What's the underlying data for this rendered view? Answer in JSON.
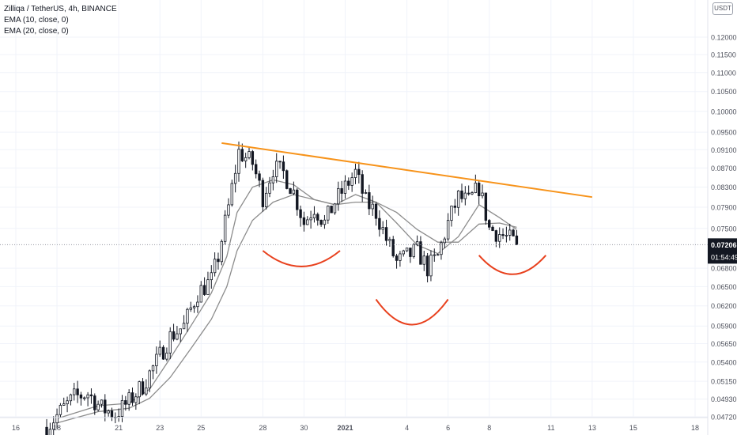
{
  "legend": {
    "title": "Zilliqa / TetherUS, 4h, BINANCE",
    "ema_fast": "EMA (10, close, 0)",
    "ema_slow": "EMA (20, close, 0)"
  },
  "currency_badge": "USDT",
  "price_badge": {
    "value": "0.07206",
    "countdown": "01:54:49"
  },
  "colors": {
    "candle": "#131722",
    "ema": "#8c8c8c",
    "trendline": "#f7931a",
    "pattern_arc": "#e8411e",
    "grid": "#f0f3fa",
    "axis_text": "#50535e",
    "badge_bg": "#131722"
  },
  "chart_data": {
    "type": "candlestick",
    "title": "Zilliqa / TetherUS, 4h, BINANCE",
    "y_scale": "log",
    "y_ticks": [
      "0.12000",
      "0.11500",
      "0.11000",
      "0.10500",
      "0.10000",
      "0.09500",
      "0.09100",
      "0.08700",
      "0.08300",
      "0.07900",
      "0.07500",
      "0.07206",
      "0.06800",
      "0.06500",
      "0.06200",
      "0.05900",
      "0.05650",
      "0.05400",
      "0.05150",
      "0.04930",
      "0.04720"
    ],
    "ylim": [
      0.0472,
      0.125
    ],
    "x_ticks": [
      {
        "label": "16",
        "x": "2020-12-16"
      },
      {
        "label": "18",
        "x": "2020-12-18"
      },
      {
        "label": "21",
        "x": "2020-12-21"
      },
      {
        "label": "23",
        "x": "2020-12-23"
      },
      {
        "label": "25",
        "x": "2020-12-25"
      },
      {
        "label": "28",
        "x": "2020-12-28"
      },
      {
        "label": "30",
        "x": "2020-12-30"
      },
      {
        "label": "2021",
        "x": "2021-01-01"
      },
      {
        "label": "4",
        "x": "2021-01-04"
      },
      {
        "label": "6",
        "x": "2021-01-06"
      },
      {
        "label": "8",
        "x": "2021-01-08"
      },
      {
        "label": "11",
        "x": "2021-01-11"
      },
      {
        "label": "13",
        "x": "2021-01-13"
      },
      {
        "label": "15",
        "x": "2021-01-15"
      },
      {
        "label": "18",
        "x": "2021-01-18"
      }
    ],
    "last_price": 0.07206,
    "ema_fast_name": "EMA (10, close, 0)",
    "ema_slow_name": "EMA (20, close, 0)",
    "price_path": [
      [
        "2020-12-17 12:00",
        0.046
      ],
      [
        "2020-12-18 04:00",
        0.0478
      ],
      [
        "2020-12-18 20:00",
        0.0495
      ],
      [
        "2020-12-19 12:00",
        0.05
      ],
      [
        "2020-12-20 04:00",
        0.0482
      ],
      [
        "2020-12-20 20:00",
        0.0475
      ],
      [
        "2020-12-21 12:00",
        0.049
      ],
      [
        "2020-12-22 04:00",
        0.051
      ],
      [
        "2020-12-22 20:00",
        0.054
      ],
      [
        "2020-12-23 12:00",
        0.0575
      ],
      [
        "2020-12-24 04:00",
        0.059
      ],
      [
        "2020-12-24 20:00",
        0.064
      ],
      [
        "2020-12-25 12:00",
        0.066
      ],
      [
        "2020-12-25 20:00",
        0.07
      ],
      [
        "2020-12-26 08:00",
        0.079
      ],
      [
        "2020-12-26 20:00",
        0.0905
      ],
      [
        "2020-12-27 12:00",
        0.088
      ],
      [
        "2020-12-28 00:00",
        0.081
      ],
      [
        "2020-12-28 12:00",
        0.087
      ],
      [
        "2020-12-29 00:00",
        0.086
      ],
      [
        "2020-12-29 12:00",
        0.082
      ],
      [
        "2020-12-30 00:00",
        0.076
      ],
      [
        "2020-12-30 12:00",
        0.079
      ],
      [
        "2020-12-31 00:00",
        0.076
      ],
      [
        "2020-12-31 12:00",
        0.08
      ],
      [
        "2021-01-01 00:00",
        0.083
      ],
      [
        "2021-01-01 12:00",
        0.086
      ],
      [
        "2021-01-02 00:00",
        0.08
      ],
      [
        "2021-01-02 12:00",
        0.078
      ],
      [
        "2021-01-03 00:00",
        0.073
      ],
      [
        "2021-01-03 12:00",
        0.069
      ],
      [
        "2021-01-04 00:00",
        0.07
      ],
      [
        "2021-01-04 12:00",
        0.071
      ],
      [
        "2021-01-05 00:00",
        0.068
      ],
      [
        "2021-01-05 12:00",
        0.07
      ],
      [
        "2021-01-06 00:00",
        0.076
      ],
      [
        "2021-01-06 12:00",
        0.081
      ],
      [
        "2021-01-07 00:00",
        0.08
      ],
      [
        "2021-01-07 12:00",
        0.083
      ],
      [
        "2021-01-08 00:00",
        0.075
      ],
      [
        "2021-01-08 12:00",
        0.074
      ],
      [
        "2021-01-09 00:00",
        0.073
      ],
      [
        "2021-01-09 08:00",
        0.07206
      ]
    ],
    "ema_fast": [
      [
        "2020-12-18 00:00",
        0.047
      ],
      [
        "2020-12-20 00:00",
        0.0485
      ],
      [
        "2020-12-21 12:00",
        0.0488
      ],
      [
        "2020-12-22 12:00",
        0.0505
      ],
      [
        "2020-12-23 12:00",
        0.0545
      ],
      [
        "2020-12-24 12:00",
        0.059
      ],
      [
        "2020-12-25 12:00",
        0.064
      ],
      [
        "2020-12-26 06:00",
        0.07
      ],
      [
        "2020-12-26 18:00",
        0.078
      ],
      [
        "2020-12-27 12:00",
        0.083
      ],
      [
        "2020-12-28 12:00",
        0.0845
      ],
      [
        "2020-12-29 12:00",
        0.0835
      ],
      [
        "2020-12-30 12:00",
        0.0805
      ],
      [
        "2020-12-31 12:00",
        0.0795
      ],
      [
        "2021-01-01 12:00",
        0.0815
      ],
      [
        "2021-01-02 12:00",
        0.08
      ],
      [
        "2021-01-03 12:00",
        0.076
      ],
      [
        "2021-01-04 12:00",
        0.072
      ],
      [
        "2021-01-05 12:00",
        0.0705
      ],
      [
        "2021-01-06 12:00",
        0.0735
      ],
      [
        "2021-01-07 12:00",
        0.0795
      ],
      [
        "2021-01-08 12:00",
        0.077
      ],
      [
        "2021-01-09 08:00",
        0.0748
      ]
    ],
    "ema_slow": [
      [
        "2020-12-18 00:00",
        0.0465
      ],
      [
        "2020-12-20 00:00",
        0.0478
      ],
      [
        "2020-12-21 12:00",
        0.0482
      ],
      [
        "2020-12-22 12:00",
        0.0494
      ],
      [
        "2020-12-23 12:00",
        0.052
      ],
      [
        "2020-12-24 12:00",
        0.0558
      ],
      [
        "2020-12-25 12:00",
        0.06
      ],
      [
        "2020-12-26 06:00",
        0.065
      ],
      [
        "2020-12-26 18:00",
        0.071
      ],
      [
        "2020-12-27 12:00",
        0.0765
      ],
      [
        "2020-12-28 12:00",
        0.08
      ],
      [
        "2020-12-29 12:00",
        0.0815
      ],
      [
        "2020-12-30 12:00",
        0.0805
      ],
      [
        "2020-12-31 12:00",
        0.0795
      ],
      [
        "2021-01-01 12:00",
        0.08
      ],
      [
        "2021-01-02 12:00",
        0.08
      ],
      [
        "2021-01-03 12:00",
        0.078
      ],
      [
        "2021-01-04 12:00",
        0.0748
      ],
      [
        "2021-01-05 12:00",
        0.0725
      ],
      [
        "2021-01-06 12:00",
        0.0725
      ],
      [
        "2021-01-07 12:00",
        0.0758
      ],
      [
        "2021-01-08 12:00",
        0.076
      ],
      [
        "2021-01-09 08:00",
        0.0752
      ]
    ],
    "trendline": {
      "from": [
        "2020-12-26 00:00",
        0.0925
      ],
      "to": [
        "2021-01-13 00:00",
        0.081
      ]
    },
    "pattern_arcs": [
      {
        "name": "left-shoulder",
        "from": "2020-12-28 00:00",
        "to": "2020-12-31 18:00",
        "edge_price": 0.071,
        "low_price": 0.0683
      },
      {
        "name": "head",
        "from": "2021-01-02 12:00",
        "to": "2021-01-06 00:00",
        "edge_price": 0.063,
        "low_price": 0.0592
      },
      {
        "name": "right-shoulder",
        "from": "2021-01-07 12:00",
        "to": "2021-01-10 18:00",
        "edge_price": 0.0702,
        "low_price": 0.067
      }
    ]
  }
}
